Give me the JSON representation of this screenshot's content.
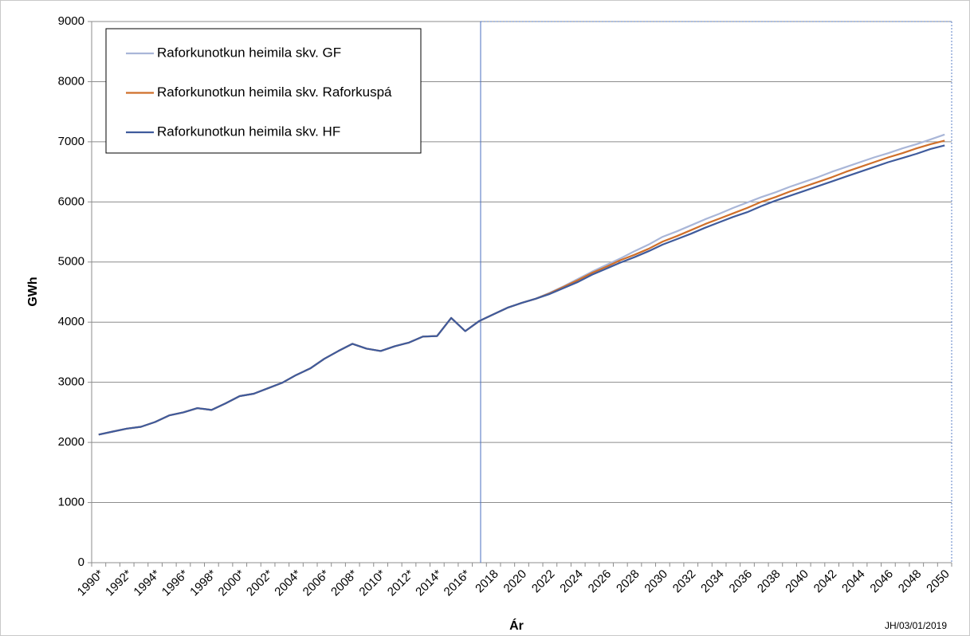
{
  "chart_data": {
    "type": "line",
    "ylabel": "GWh",
    "xlabel": "Ár",
    "annotation": "JH/03/01/2019",
    "categories": [
      "1990*",
      null,
      "1992*",
      null,
      "1994*",
      null,
      "1996*",
      null,
      "1998*",
      null,
      "2000*",
      null,
      "2002*",
      null,
      "2004*",
      null,
      "2006*",
      null,
      "2008*",
      null,
      "2010*",
      null,
      "2012*",
      null,
      "2014*",
      null,
      "2016*",
      null,
      "2018",
      null,
      "2020",
      null,
      "2022",
      null,
      "2024",
      null,
      "2026",
      null,
      "2028",
      null,
      "2030",
      null,
      "2032",
      null,
      "2034",
      null,
      "2036",
      null,
      "2038",
      null,
      "2040",
      null,
      "2042",
      null,
      "2044",
      null,
      "2046",
      null,
      "2048",
      null,
      "2050"
    ],
    "series": [
      {
        "name": "Raforkunotkun heimila skv. GF",
        "color": "#a9b6d8",
        "values": [
          2130,
          2180,
          2230,
          2260,
          2340,
          2450,
          2500,
          2570,
          2540,
          2650,
          2770,
          2810,
          2900,
          2990,
          3120,
          3230,
          3390,
          3520,
          3640,
          3560,
          3520,
          3600,
          3660,
          3760,
          3770,
          4070,
          3850,
          4020,
          4130,
          4240,
          4320,
          4390,
          4490,
          4600,
          4720,
          4840,
          4950,
          5060,
          5180,
          5290,
          5420,
          5510,
          5610,
          5710,
          5800,
          5900,
          5990,
          6080,
          6160,
          6250,
          6330,
          6410,
          6500,
          6580,
          6660,
          6740,
          6810,
          6890,
          6960,
          7040,
          7120
        ]
      },
      {
        "name": "Raforkunotkun heimila skv. Raforkuspá",
        "color": "#cf6f2a",
        "values": [
          2130,
          2180,
          2230,
          2260,
          2340,
          2450,
          2500,
          2570,
          2540,
          2650,
          2770,
          2810,
          2900,
          2990,
          3120,
          3230,
          3390,
          3520,
          3640,
          3560,
          3520,
          3600,
          3660,
          3760,
          3770,
          4070,
          3850,
          4020,
          4130,
          4240,
          4320,
          4390,
          4480,
          4590,
          4700,
          4820,
          4920,
          5030,
          5120,
          5220,
          5340,
          5430,
          5530,
          5630,
          5720,
          5810,
          5900,
          6000,
          6080,
          6170,
          6250,
          6330,
          6410,
          6500,
          6580,
          6660,
          6740,
          6810,
          6890,
          6960,
          7020
        ]
      },
      {
        "name": "Raforkunotkun heimila skv. HF",
        "color": "#3f5b9c",
        "values": [
          2130,
          2180,
          2230,
          2260,
          2340,
          2450,
          2500,
          2570,
          2540,
          2650,
          2770,
          2810,
          2900,
          2990,
          3120,
          3230,
          3390,
          3520,
          3640,
          3560,
          3520,
          3600,
          3660,
          3760,
          3770,
          4070,
          3850,
          4020,
          4130,
          4240,
          4320,
          4390,
          4470,
          4570,
          4670,
          4790,
          4890,
          4990,
          5080,
          5180,
          5290,
          5380,
          5470,
          5570,
          5660,
          5750,
          5830,
          5930,
          6020,
          6100,
          6180,
          6260,
          6340,
          6420,
          6500,
          6580,
          6660,
          6730,
          6800,
          6880,
          6940
        ]
      }
    ],
    "ylim": [
      0,
      9000
    ],
    "yticks": [
      0,
      1000,
      2000,
      3000,
      4000,
      5000,
      6000,
      7000,
      8000,
      9000
    ],
    "grid": true,
    "legend": "upper left"
  }
}
